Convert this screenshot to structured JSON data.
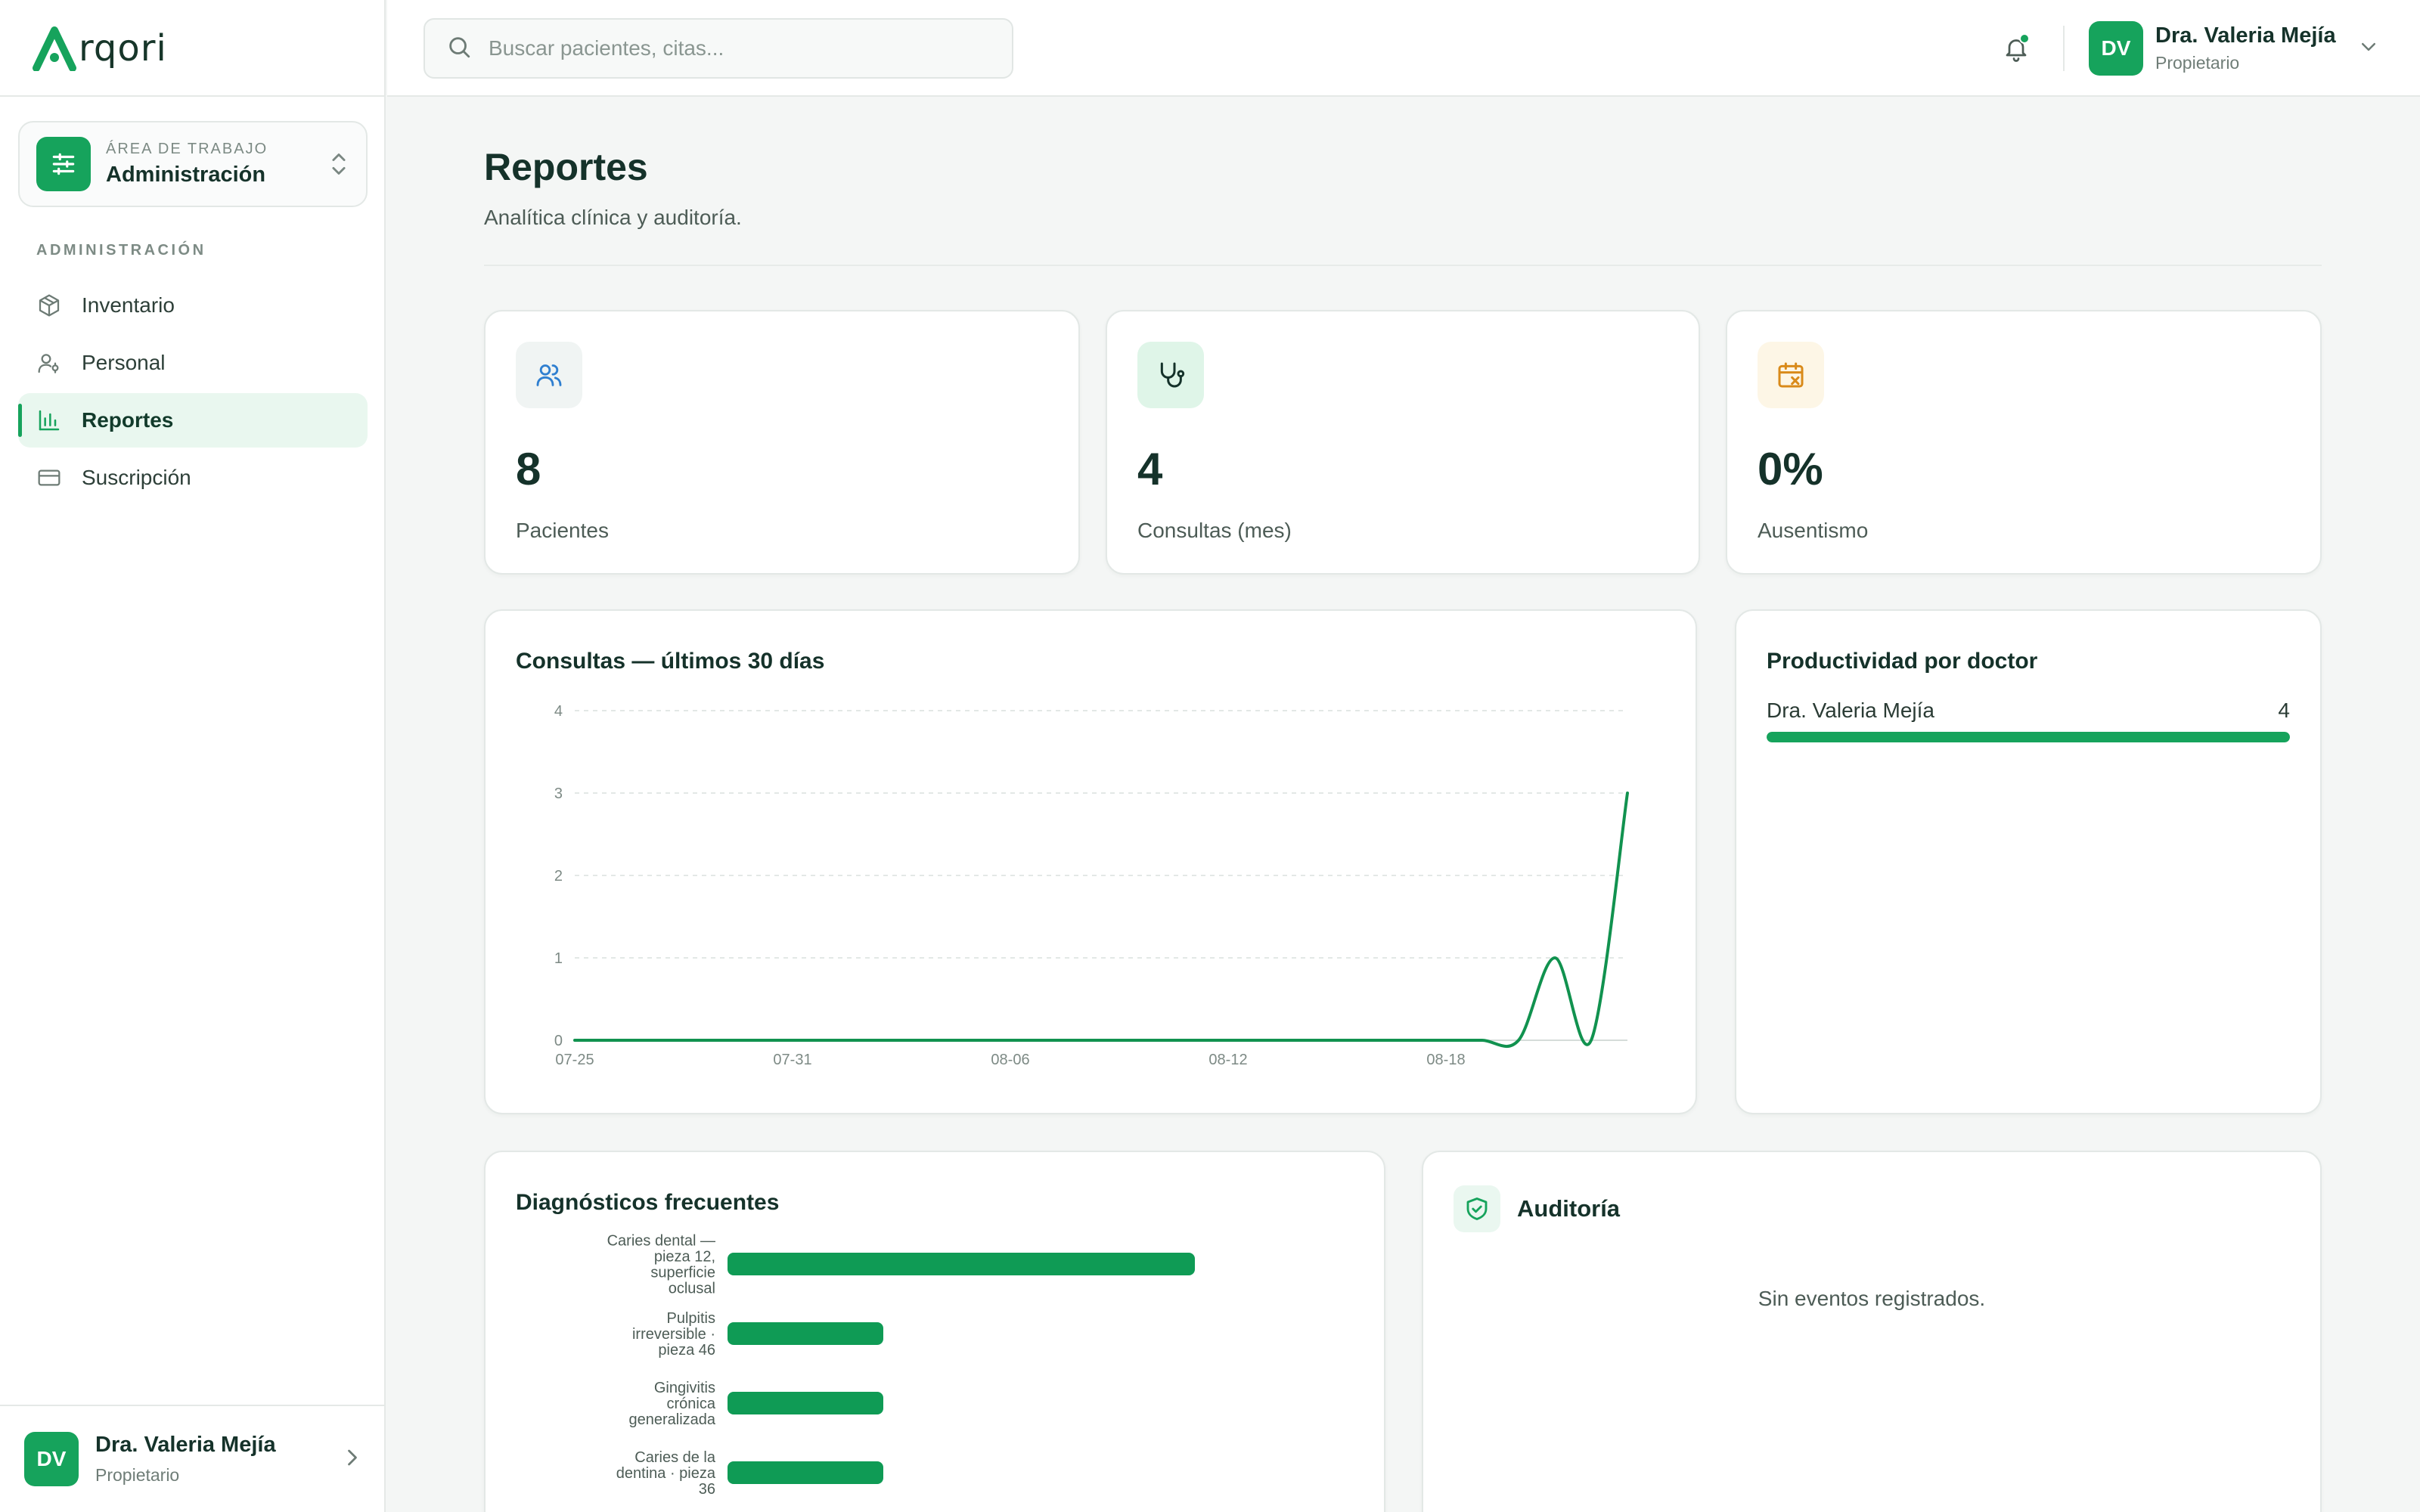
{
  "app": {
    "logo_text": "rqori"
  },
  "workspace": {
    "caption": "ÁREA DE TRABAJO",
    "name": "Administración"
  },
  "sidebar": {
    "section_label": "ADMINISTRACIÓN",
    "items": [
      {
        "label": "Inventario",
        "icon": "box-icon",
        "active": false
      },
      {
        "label": "Personal",
        "icon": "staff-icon",
        "active": false
      },
      {
        "label": "Reportes",
        "icon": "bar-chart-icon",
        "active": true
      },
      {
        "label": "Suscripción",
        "icon": "credit-card-icon",
        "active": false
      }
    ],
    "user": {
      "initials": "DV",
      "name": "Dra. Valeria Mejía",
      "role": "Propietario"
    }
  },
  "topbar": {
    "search_placeholder": "Buscar pacientes, citas...",
    "notifications_unread": true,
    "user": {
      "initials": "DV",
      "name": "Dra. Valeria Mejía",
      "role": "Propietario"
    }
  },
  "page": {
    "title": "Reportes",
    "subtitle": "Analítica clínica y auditoría."
  },
  "stats": [
    {
      "value": "8",
      "label": "Pacientes",
      "icon": "users-icon"
    },
    {
      "value": "4",
      "label": "Consultas (mes)",
      "icon": "stethoscope-icon"
    },
    {
      "value": "0%",
      "label": "Ausentismo",
      "icon": "calendar-x-icon"
    }
  ],
  "consultas_chart": {
    "title": "Consultas — últimos 30 días"
  },
  "productividad": {
    "title": "Productividad por doctor",
    "doctors": [
      {
        "name": "Dra. Valeria Mejía",
        "count": "4",
        "fraction": 1.0
      }
    ]
  },
  "diagnosticos": {
    "title": "Diagnósticos frecuentes"
  },
  "auditoria": {
    "title": "Auditoría",
    "empty_text": "Sin eventos registrados."
  },
  "colors": {
    "accent": "#16a35c",
    "chart_line": "#11924f",
    "text_dark": "#15322a",
    "muted": "#4d5c56"
  },
  "chart_data": [
    {
      "type": "line",
      "title": "Consultas — últimos 30 días",
      "x": [
        "07-25",
        "07-26",
        "07-27",
        "07-28",
        "07-29",
        "07-30",
        "07-31",
        "08-01",
        "08-02",
        "08-03",
        "08-04",
        "08-05",
        "08-06",
        "08-07",
        "08-08",
        "08-09",
        "08-10",
        "08-11",
        "08-12",
        "08-13",
        "08-14",
        "08-15",
        "08-16",
        "08-17",
        "08-18",
        "08-19",
        "08-20",
        "08-21",
        "08-22",
        "08-23"
      ],
      "x_tick_labels": [
        "07-25",
        "07-31",
        "08-06",
        "08-12",
        "08-18"
      ],
      "series": [
        {
          "values": [
            0,
            0,
            0,
            0,
            0,
            0,
            0,
            0,
            0,
            0,
            0,
            0,
            0,
            0,
            0,
            0,
            0,
            0,
            0,
            0,
            0,
            0,
            0,
            0,
            0,
            0,
            0,
            1,
            0,
            3
          ]
        }
      ],
      "ylim": [
        0,
        4
      ],
      "y_ticks": [
        0,
        1,
        2,
        3,
        4
      ],
      "grid": true,
      "xlabel": "",
      "ylabel": ""
    },
    {
      "type": "bar",
      "orientation": "horizontal",
      "title": "Diagnósticos frecuentes",
      "categories": [
        "Caries dental — pieza 12, superficie oclusal",
        "Pulpitis irreversible · pieza 46",
        "Gingivitis crónica generalizada",
        "Caries de la dentina · pieza 36"
      ],
      "category_lines": [
        [
          "Caries dental —",
          "pieza 12,",
          "superficie",
          "oclusal"
        ],
        [
          "Pulpitis",
          "irreversible ·",
          "pieza 46"
        ],
        [
          "Gingivitis",
          "crónica",
          "generalizada"
        ],
        [
          "Caries de la",
          "dentina · pieza",
          "36"
        ]
      ],
      "values": [
        3,
        1,
        1,
        1
      ],
      "xlim": [
        0,
        4
      ]
    }
  ]
}
